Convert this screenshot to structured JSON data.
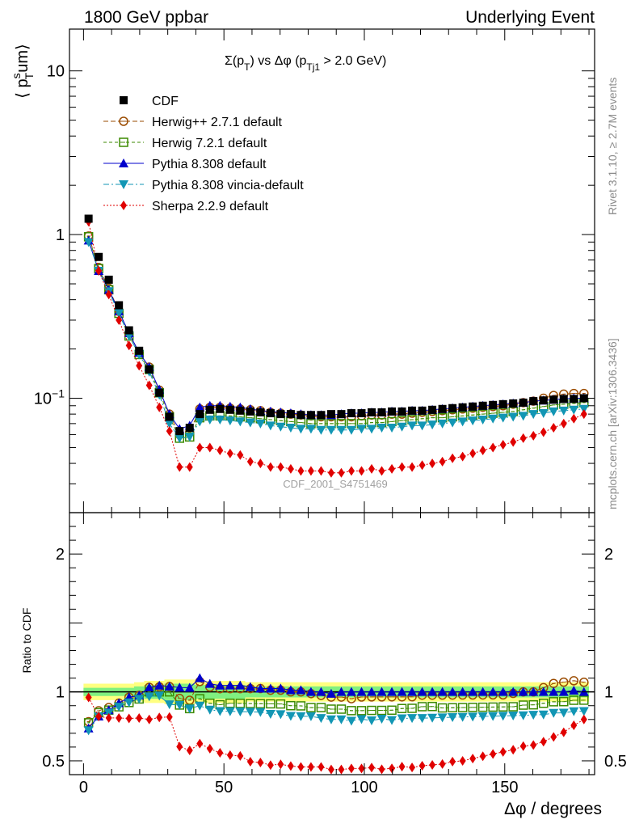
{
  "header": {
    "left": "1800 GeV ppbar",
    "right": "Underlying Event"
  },
  "side_labels": {
    "rivet": "Rivet 3.1.10, ≥ 2.7M events",
    "mcplots": "mcplots.cern.ch [arXiv:1306.3436]"
  },
  "watermark": "CDF_2001_S4751469",
  "plot_title": {
    "main": "Σ(p",
    "sub1": "T",
    "mid": ") vs Δφ (p",
    "sub2": "Tj1",
    "tail": " > 2.0 GeV)"
  },
  "ylabel": {
    "prefix": "⟨ p",
    "sup": "s",
    "sub": "T",
    "suffix": "um⟩"
  },
  "ratio_ylabel": "Ratio to CDF",
  "xlabel": "Δφ / degrees",
  "colors": {
    "cdf": "#000000",
    "herwigpp": "#9a4b00",
    "herwig7": "#3c8a00",
    "pythia": "#0000cc",
    "vincia": "#1296b4",
    "sherpa": "#e00000",
    "band_outer": "#ffff80",
    "band_inner": "#80f080"
  },
  "chart_data": {
    "type": "scatter",
    "x_unit": "degrees",
    "upper": {
      "yscale": "log",
      "ylim": [
        0.02,
        18
      ],
      "ytick_labels": [
        "10",
        "1",
        "10^-1"
      ]
    },
    "lower": {
      "ylim": [
        0.4,
        2.3
      ],
      "ytick_labels": [
        "0.5",
        "1",
        "2"
      ]
    },
    "xlim": [
      -5,
      182
    ],
    "xtick_labels": [
      "0",
      "50",
      "100",
      "150"
    ],
    "x": [
      1.8,
      5.4,
      9,
      12.6,
      16.2,
      19.8,
      23.4,
      27,
      30.6,
      34.2,
      37.8,
      41.4,
      45,
      48.6,
      52.2,
      55.8,
      59.4,
      63,
      66.6,
      70.2,
      73.8,
      77.4,
      81,
      84.6,
      88.2,
      91.8,
      95.4,
      99,
      102.6,
      106.2,
      109.8,
      113.4,
      117,
      120.6,
      124.2,
      127.8,
      131.4,
      135,
      138.6,
      142.2,
      145.8,
      149.4,
      153,
      156.6,
      160.2,
      163.8,
      167.4,
      171,
      174.6,
      178.2
    ],
    "series": [
      {
        "name": "CDF",
        "key": "cdf",
        "marker": "square-filled",
        "values": [
          1.25,
          0.73,
          0.53,
          0.37,
          0.26,
          0.195,
          0.15,
          0.108,
          0.077,
          0.063,
          0.066,
          0.08,
          0.085,
          0.086,
          0.085,
          0.084,
          0.083,
          0.082,
          0.081,
          0.08,
          0.08,
          0.079,
          0.079,
          0.079,
          0.08,
          0.08,
          0.081,
          0.081,
          0.082,
          0.082,
          0.083,
          0.083,
          0.084,
          0.084,
          0.085,
          0.086,
          0.087,
          0.088,
          0.089,
          0.09,
          0.091,
          0.092,
          0.093,
          0.094,
          0.096,
          0.097,
          0.098,
          0.099,
          0.099,
          0.1
        ]
      },
      {
        "name": "Herwig++ 2.7.1 default",
        "key": "herwigpp",
        "marker": "circle-open",
        "dash": "6,3",
        "values": [
          0.98,
          0.63,
          0.47,
          0.34,
          0.25,
          0.19,
          0.155,
          0.112,
          0.08,
          0.06,
          0.062,
          0.086,
          0.088,
          0.088,
          0.087,
          0.086,
          0.085,
          0.084,
          0.082,
          0.081,
          0.08,
          0.079,
          0.078,
          0.077,
          0.077,
          0.077,
          0.077,
          0.078,
          0.079,
          0.079,
          0.08,
          0.08,
          0.081,
          0.082,
          0.083,
          0.084,
          0.085,
          0.086,
          0.087,
          0.088,
          0.089,
          0.09,
          0.092,
          0.094,
          0.096,
          0.1,
          0.104,
          0.106,
          0.107,
          0.107
        ]
      },
      {
        "name": "Herwig 7.2.1 default",
        "key": "herwig7",
        "marker": "square-open",
        "dash": "4,3",
        "values": [
          0.97,
          0.62,
          0.46,
          0.33,
          0.24,
          0.185,
          0.15,
          0.108,
          0.077,
          0.057,
          0.058,
          0.076,
          0.078,
          0.078,
          0.078,
          0.077,
          0.076,
          0.075,
          0.074,
          0.073,
          0.072,
          0.071,
          0.07,
          0.07,
          0.07,
          0.07,
          0.07,
          0.07,
          0.071,
          0.071,
          0.072,
          0.073,
          0.074,
          0.075,
          0.076,
          0.076,
          0.077,
          0.078,
          0.079,
          0.08,
          0.081,
          0.082,
          0.083,
          0.085,
          0.087,
          0.089,
          0.091,
          0.092,
          0.093,
          0.094
        ]
      },
      {
        "name": "Pythia 8.308 default",
        "key": "pythia",
        "marker": "triangle-up",
        "dash": "",
        "values": [
          0.92,
          0.6,
          0.46,
          0.34,
          0.25,
          0.19,
          0.155,
          0.113,
          0.08,
          0.065,
          0.068,
          0.088,
          0.09,
          0.09,
          0.089,
          0.088,
          0.086,
          0.084,
          0.083,
          0.082,
          0.081,
          0.08,
          0.079,
          0.079,
          0.079,
          0.08,
          0.081,
          0.081,
          0.082,
          0.082,
          0.083,
          0.083,
          0.084,
          0.084,
          0.085,
          0.086,
          0.087,
          0.088,
          0.089,
          0.09,
          0.091,
          0.092,
          0.093,
          0.094,
          0.096,
          0.097,
          0.098,
          0.099,
          0.1,
          0.1
        ]
      },
      {
        "name": "Pythia 8.308 vincia-default",
        "key": "vincia",
        "marker": "triangle-down",
        "dash": "7,3,2,3",
        "values": [
          0.9,
          0.6,
          0.45,
          0.33,
          0.24,
          0.185,
          0.145,
          0.105,
          0.07,
          0.057,
          0.058,
          0.072,
          0.074,
          0.074,
          0.073,
          0.072,
          0.071,
          0.07,
          0.068,
          0.067,
          0.066,
          0.065,
          0.065,
          0.064,
          0.064,
          0.064,
          0.064,
          0.065,
          0.065,
          0.066,
          0.066,
          0.067,
          0.068,
          0.068,
          0.069,
          0.07,
          0.071,
          0.072,
          0.073,
          0.074,
          0.075,
          0.076,
          0.077,
          0.078,
          0.08,
          0.081,
          0.083,
          0.084,
          0.085,
          0.086
        ]
      },
      {
        "name": "Sherpa 2.2.9 default",
        "key": "sherpa",
        "marker": "diamond",
        "dash": "2,2",
        "values": [
          1.2,
          0.6,
          0.43,
          0.3,
          0.21,
          0.158,
          0.12,
          0.088,
          0.063,
          0.038,
          0.038,
          0.05,
          0.05,
          0.048,
          0.046,
          0.045,
          0.041,
          0.04,
          0.038,
          0.038,
          0.037,
          0.036,
          0.036,
          0.036,
          0.035,
          0.035,
          0.036,
          0.036,
          0.037,
          0.036,
          0.037,
          0.038,
          0.038,
          0.039,
          0.04,
          0.041,
          0.043,
          0.044,
          0.046,
          0.048,
          0.05,
          0.052,
          0.054,
          0.057,
          0.059,
          0.062,
          0.066,
          0.07,
          0.075,
          0.08
        ]
      }
    ],
    "ratio": {
      "band_outer": [
        0.06,
        0.06,
        0.06,
        0.06,
        0.06,
        0.07,
        0.08,
        0.08,
        0.09,
        0.09,
        0.09,
        0.08,
        0.08,
        0.08,
        0.08,
        0.08,
        0.07,
        0.07,
        0.07,
        0.07,
        0.07,
        0.07,
        0.07,
        0.07,
        0.07,
        0.07,
        0.07,
        0.07,
        0.07,
        0.07,
        0.07,
        0.07,
        0.07,
        0.07,
        0.07,
        0.07,
        0.07,
        0.07,
        0.07,
        0.07,
        0.07,
        0.07,
        0.07,
        0.07,
        0.07,
        0.07,
        0.07,
        0.07,
        0.07,
        0.07
      ],
      "band_inner": [
        0.03,
        0.03,
        0.03,
        0.03,
        0.03,
        0.04,
        0.05,
        0.05,
        0.06,
        0.06,
        0.06,
        0.05,
        0.05,
        0.05,
        0.05,
        0.05,
        0.04,
        0.04,
        0.04,
        0.04,
        0.04,
        0.04,
        0.04,
        0.04,
        0.04,
        0.04,
        0.04,
        0.04,
        0.04,
        0.04,
        0.04,
        0.04,
        0.04,
        0.04,
        0.04,
        0.04,
        0.04,
        0.04,
        0.04,
        0.04,
        0.04,
        0.04,
        0.04,
        0.04,
        0.04,
        0.04,
        0.04,
        0.04,
        0.04,
        0.04
      ]
    }
  }
}
